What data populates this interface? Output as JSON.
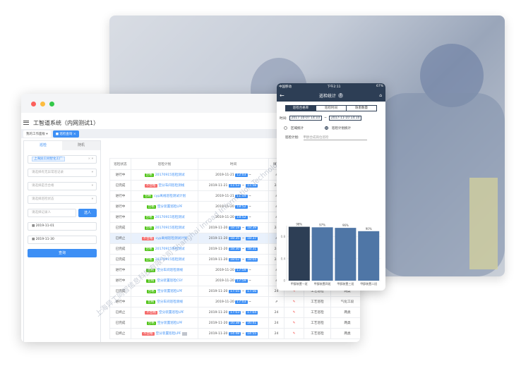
{
  "app": {
    "title": "工智道系统（内网测试1）",
    "tabs": [
      {
        "label": "我的工作面板"
      },
      {
        "label": "巡检查询"
      }
    ]
  },
  "left_panel": {
    "tabs": [
      "巡检",
      "随机"
    ],
    "org_chip": "上海异工同智化工厂",
    "select1": "请选择有无异常巡记录",
    "select2": "请选择是否合格",
    "select3": "请选择巡检状态",
    "recorder_placeholder": "请选择记录人",
    "select_button": "选人",
    "date_from": "2019-11-01",
    "date_to": "2019-11-30",
    "query_button": "查询"
  },
  "table": {
    "headers": [
      "巡检状态",
      "巡检计划",
      "时间",
      "填写",
      "",
      "",
      ""
    ],
    "rows": [
      {
        "status": "进行中",
        "result": "合格",
        "plan": "20170915巡检测试",
        "date": "2019-11-21",
        "start": "12:03",
        "end": "",
        "fill": "⇗",
        "type": "工艺巡检",
        "area": "两类"
      },
      {
        "status": "已完成",
        "result": "不合格",
        "plan": "空分车间巡检测线",
        "date": "2019-11-21",
        "start": "11:53",
        "end": "11:58",
        "fill": "24",
        "type": "工艺巡检",
        "area": "两类"
      },
      {
        "status": "进行中",
        "result": "合格",
        "plan": "cyp离线巡检测试计划",
        "date": "2019-11-21",
        "start": "11:49",
        "end": "",
        "fill": "⇗",
        "type": "工艺巡检",
        "area": "两类"
      },
      {
        "status": "进行中",
        "result": "合格",
        "plan": "空分装置巡检LPF",
        "date": "2019-11-20",
        "start": "18:52",
        "end": "",
        "fill": "⇗",
        "type": "工艺巡检",
        "area": "两类"
      },
      {
        "status": "进行中",
        "result": "合格",
        "plan": "20170915巡检测试",
        "date": "2019-11-20",
        "start": "18:52",
        "end": "",
        "fill": "⇗",
        "type": "工艺巡检",
        "area": "两类"
      },
      {
        "status": "已完成",
        "result": "合格",
        "plan": "20170915巡检测试",
        "date": "2019-11-20",
        "start": "18:18",
        "end": "18:39",
        "fill": "24",
        "type": "工艺巡检",
        "area": "两类"
      },
      {
        "status": "已终止",
        "result": "不合格",
        "plan": "cyp离线巡检测试计划",
        "date": "2019-11-20",
        "start": "18:35",
        "end": "18:37",
        "fill": "⇗",
        "type": "工艺巡检",
        "area": "两类"
      },
      {
        "status": "已完成",
        "result": "合格",
        "plan": "20170915巡检测试",
        "date": "2019-11-20",
        "start": "18:30",
        "end": "18:31",
        "fill": "24",
        "type": "工艺巡检",
        "area": "两类"
      },
      {
        "status": "已完成",
        "result": "合格",
        "plan": "20170915巡检测试",
        "date": "2019-11-20",
        "start": "18:02",
        "end": "18:04",
        "fill": "24",
        "type": "工艺巡检",
        "area": "两类"
      },
      {
        "status": "进行中",
        "result": "合格",
        "plan": "空分车间巡检测线",
        "date": "2019-11-20",
        "start": "17:59",
        "end": "",
        "fill": "⇗",
        "type": "工艺巡检",
        "area": "两类"
      },
      {
        "status": "进行中",
        "result": "合格",
        "plan": "空分装置巡检CSY",
        "date": "2019-11-20",
        "start": "17:59",
        "end": "",
        "fill": "⇗",
        "type": "工艺巡检",
        "area": "两类"
      },
      {
        "status": "已完成",
        "result": "合格",
        "plan": "空分装置巡检LPF",
        "date": "2019-11-20",
        "start": "17:55",
        "end": "17:56",
        "fill": "24",
        "type": "工艺巡检",
        "area": "两类"
      },
      {
        "status": "进行中",
        "result": "合格",
        "plan": "空分车间巡检测线",
        "date": "2019-11-20",
        "start": "17:03",
        "end": "",
        "fill": "⇗",
        "type": "工艺巡检",
        "area": "气化工段"
      },
      {
        "status": "已终止",
        "result": "不合格",
        "plan": "空分装置巡检LPF",
        "date": "2019-11-20",
        "start": "17:03",
        "end": "17:04",
        "fill": "24",
        "type": "工艺巡检",
        "area": "两类"
      },
      {
        "status": "已完成",
        "result": "合格",
        "plan": "空分装置巡检LPF",
        "date": "2019-11-20",
        "start": "16:38",
        "end": "16:41",
        "fill": "24",
        "type": "工艺巡检",
        "area": "两类"
      },
      {
        "status": "已终止",
        "result": "不合格",
        "plan": "空分装置巡检LPF",
        "date": "2019-11-20",
        "start": "14:48",
        "end": "14:55",
        "fill": "24",
        "type": "工艺巡检",
        "area": "两类"
      }
    ]
  },
  "phone": {
    "carrier": "中国移动",
    "time": "下午2:11",
    "battery": "67%",
    "title": "巡检统计",
    "tabs": [
      "巡检合格率",
      "巡检时间",
      "隐患数量"
    ],
    "time_label": "时间:",
    "from": "2017-10-07 14:10",
    "sep": "~",
    "to": "2017-11-10 14:10",
    "radio1": "区域统计",
    "radio2": "巡检计划统计",
    "plan_label": "巡检计划:",
    "plan_placeholder": "甲醇合成岗位巡检"
  },
  "chart_data": {
    "type": "bar",
    "categories": [
      "甲醇装置一班",
      "甲醇装置四班",
      "甲醇装置三班",
      "甲醇装置二班"
    ],
    "values": [
      0.98,
      0.97,
      0.96,
      0.9
    ],
    "data_labels": [
      "98%",
      "97%",
      "96%",
      "90%"
    ],
    "yticks": [
      "0",
      "0.4",
      "0.8"
    ],
    "ylim": [
      0,
      1.0
    ],
    "colors": [
      "#2d3e55",
      "#4f76a6",
      "#4f76a6",
      "#4f76a6"
    ]
  },
  "watermark": "上海异工同智信息科技有限公司 Shanghai Inroad Information Technology Co., Ltd.",
  "colors": {
    "primary": "#3d8ff5",
    "navy": "#2d3e55",
    "pass": "#52c41a",
    "fail": "#f56c6c"
  }
}
